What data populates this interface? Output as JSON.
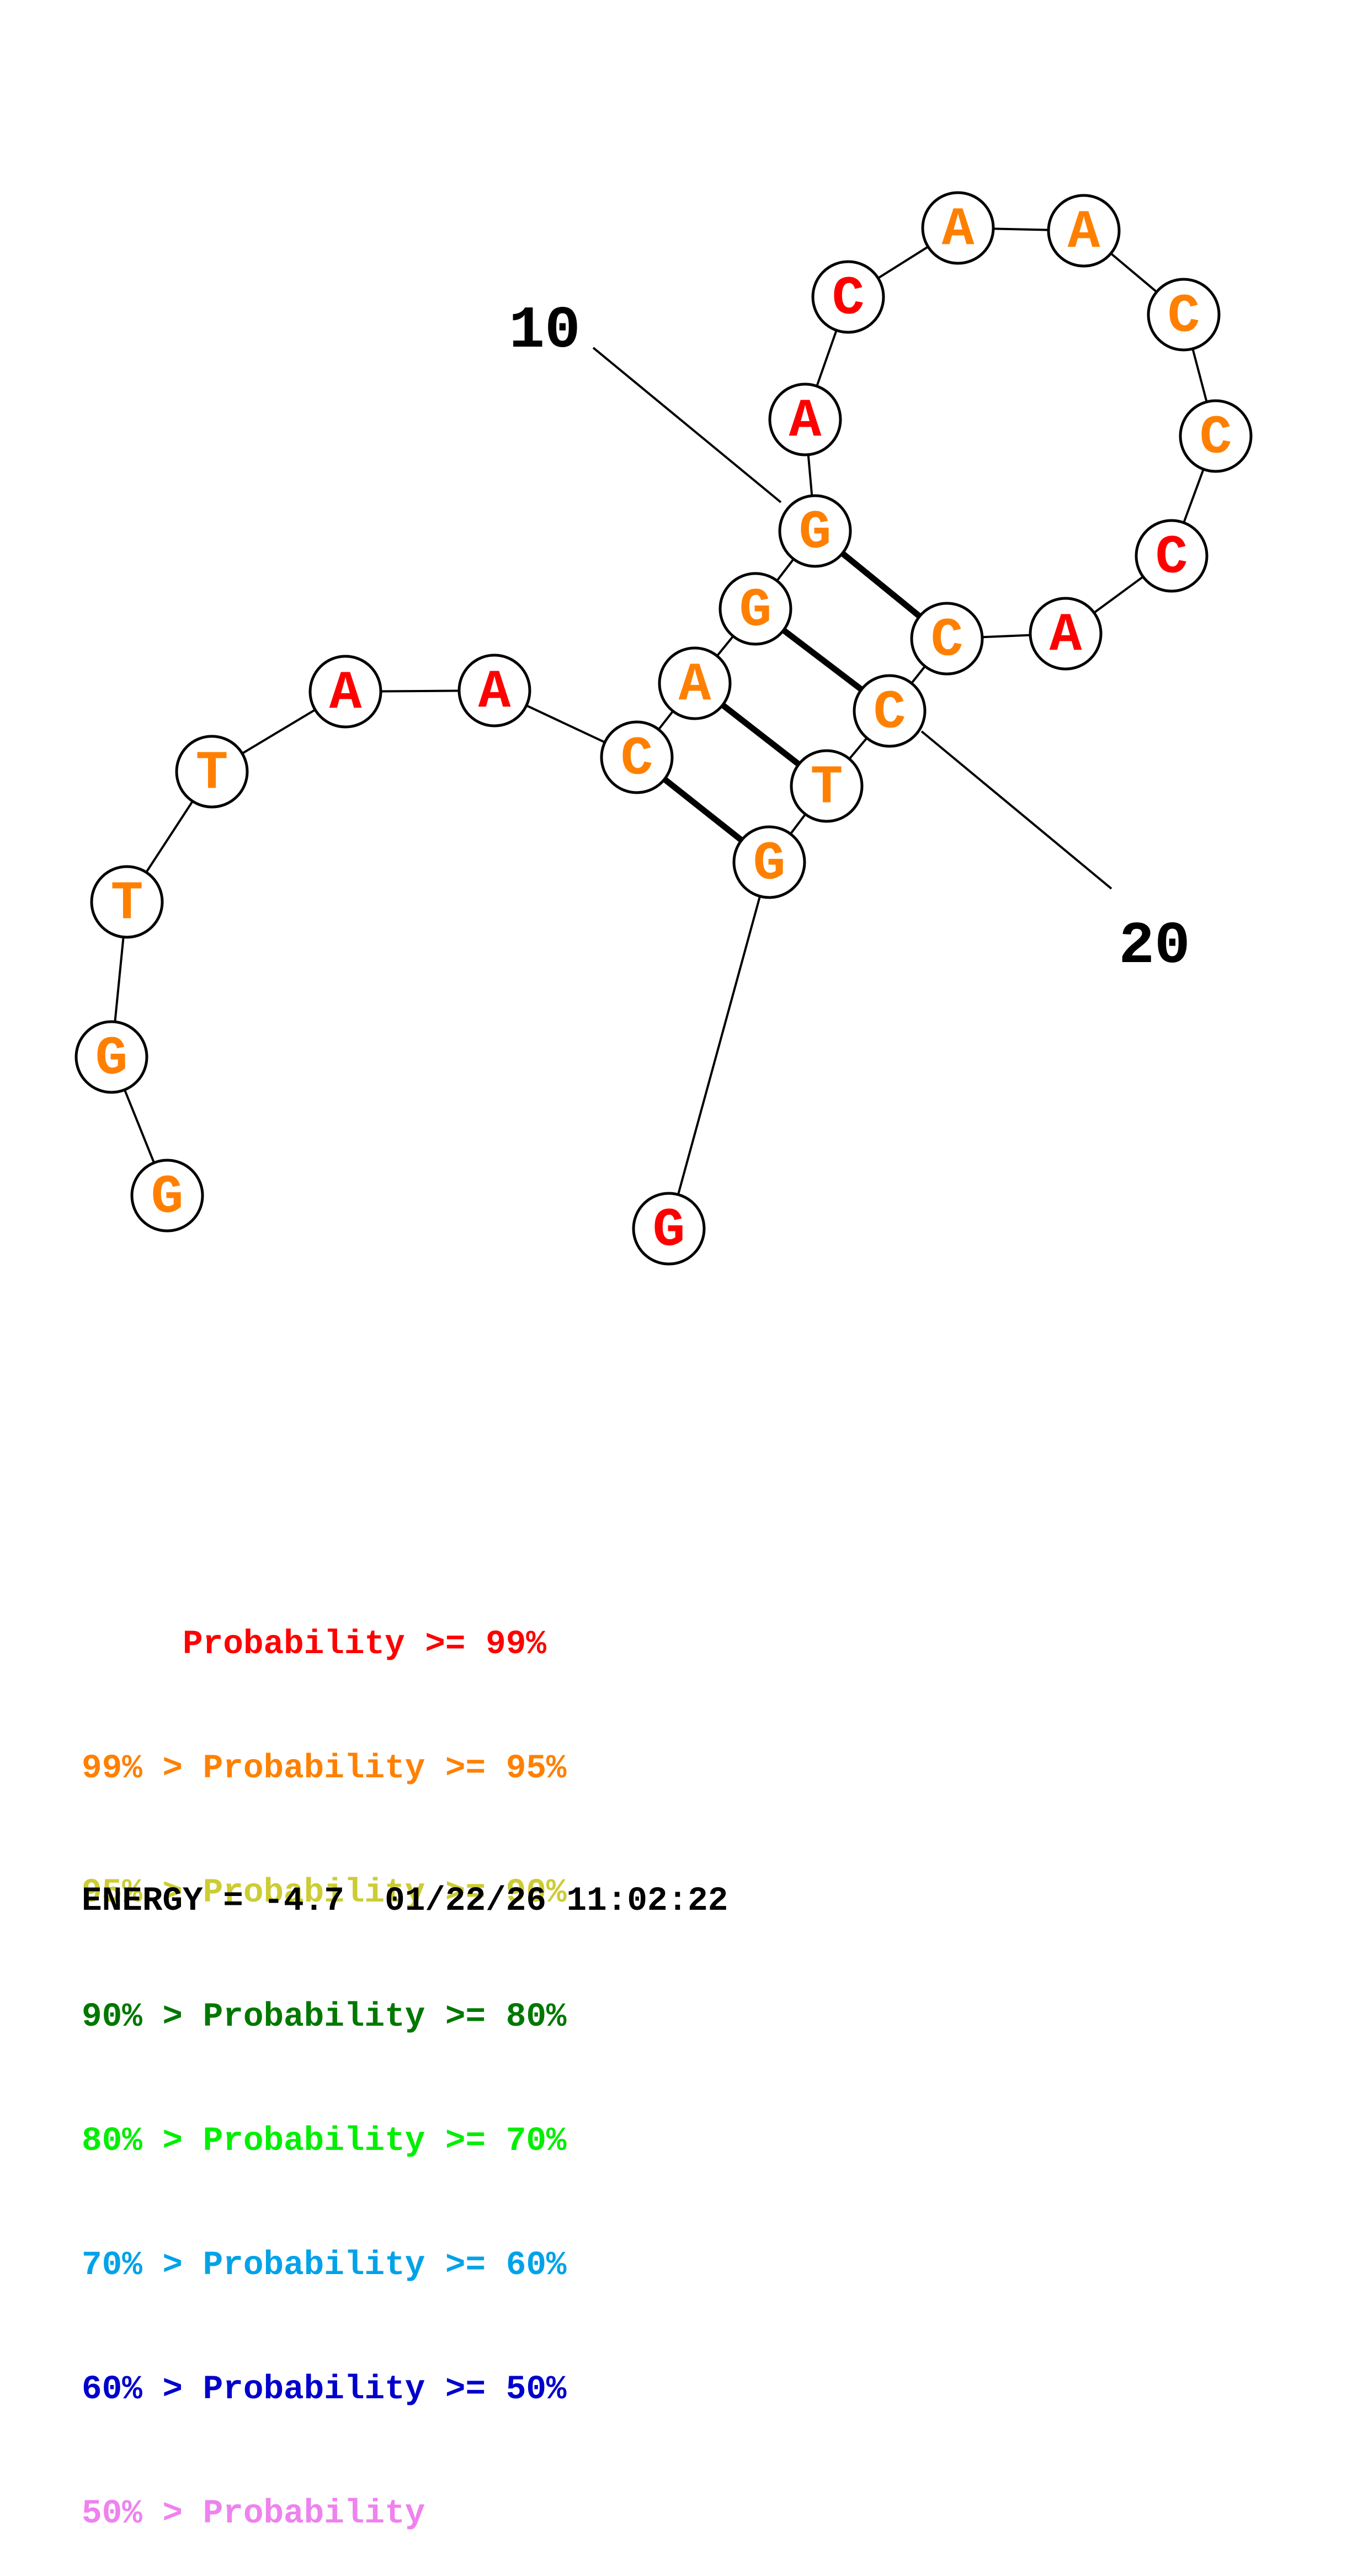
{
  "diagram": {
    "type": "rna-secondary-structure",
    "colors": {
      "p99": "#ff0000",
      "p95": "#ff8000",
      "p90": "#cccc33",
      "p80": "#007700",
      "p70": "#00ee00",
      "p60": "#00a2e8",
      "p50": "#0000cc",
      "below50": "#ee82ee"
    },
    "nucleotides": [
      {
        "i": 1,
        "base": "G",
        "prob": "p95"
      },
      {
        "i": 2,
        "base": "G",
        "prob": "p95"
      },
      {
        "i": 3,
        "base": "T",
        "prob": "p95"
      },
      {
        "i": 4,
        "base": "T",
        "prob": "p95"
      },
      {
        "i": 5,
        "base": "A",
        "prob": "p99"
      },
      {
        "i": 6,
        "base": "A",
        "prob": "p99"
      },
      {
        "i": 7,
        "base": "C",
        "prob": "p95"
      },
      {
        "i": 8,
        "base": "A",
        "prob": "p95"
      },
      {
        "i": 9,
        "base": "G",
        "prob": "p95"
      },
      {
        "i": 10,
        "base": "G",
        "prob": "p95"
      },
      {
        "i": 11,
        "base": "A",
        "prob": "p99"
      },
      {
        "i": 12,
        "base": "C",
        "prob": "p99"
      },
      {
        "i": 13,
        "base": "A",
        "prob": "p95"
      },
      {
        "i": 14,
        "base": "A",
        "prob": "p95"
      },
      {
        "i": 15,
        "base": "C",
        "prob": "p95"
      },
      {
        "i": 16,
        "base": "C",
        "prob": "p95"
      },
      {
        "i": 17,
        "base": "C",
        "prob": "p99"
      },
      {
        "i": 18,
        "base": "A",
        "prob": "p99"
      },
      {
        "i": 19,
        "base": "C",
        "prob": "p95"
      },
      {
        "i": 20,
        "base": "C",
        "prob": "p95"
      },
      {
        "i": 21,
        "base": "T",
        "prob": "p95"
      },
      {
        "i": 22,
        "base": "G",
        "prob": "p95"
      },
      {
        "i": 23,
        "base": "G",
        "prob": "p99"
      }
    ],
    "pairs": [
      [
        7,
        22
      ],
      [
        8,
        21
      ],
      [
        9,
        20
      ],
      [
        10,
        19
      ]
    ],
    "position_labels": [
      {
        "text": "10",
        "nucleotide": 10
      },
      {
        "text": "20",
        "nucleotide": 20
      }
    ]
  },
  "legend": [
    {
      "text": "     Probability >= 99%",
      "color": "#ff0000"
    },
    {
      "text": "99% > Probability >= 95%",
      "color": "#ff8000"
    },
    {
      "text": "95% > Probability >= 90%",
      "color": "#cccc33"
    },
    {
      "text": "90% > Probability >= 80%",
      "color": "#007700"
    },
    {
      "text": "80% > Probability >= 70%",
      "color": "#00ee00"
    },
    {
      "text": "70% > Probability >= 60%",
      "color": "#00a2e8"
    },
    {
      "text": "60% > Probability >= 50%",
      "color": "#0000cc"
    },
    {
      "text": "50% > Probability",
      "color": "#ee82ee"
    }
  ],
  "footer": {
    "energy": "ENERGY = -4.7  01/22/26 11:02:22"
  }
}
